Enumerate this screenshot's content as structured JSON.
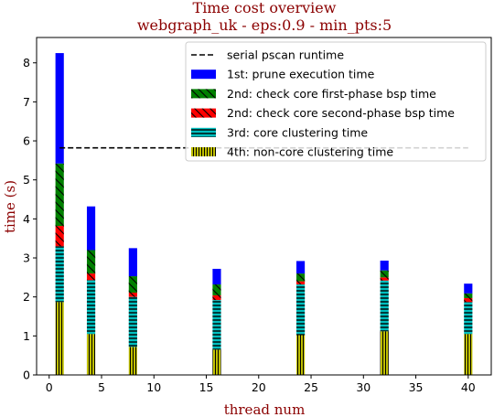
{
  "chart_data": {
    "type": "bar",
    "stacked": true,
    "title": "Time cost overview",
    "subtitle": "webgraph_uk - eps:0.9 - min_pts:5",
    "xlabel": "thread num",
    "ylabel": "time (s)",
    "xlim": [
      -1.2,
      42.2
    ],
    "ylim": [
      0,
      8.65
    ],
    "xticks": [
      0,
      5,
      10,
      15,
      20,
      25,
      30,
      35,
      40
    ],
    "yticks": [
      0,
      1,
      2,
      3,
      4,
      5,
      6,
      7,
      8
    ],
    "bar_width": 0.8,
    "x": [
      1,
      4,
      8,
      16,
      24,
      32,
      40
    ],
    "reference_line": {
      "name": "serial pscan runtime",
      "y": 5.82,
      "x_range": [
        1,
        40
      ],
      "color": "#000000"
    },
    "series": [
      {
        "name": "4th: non-core clustering time",
        "color": "#bfbf00",
        "hatch": "vertical",
        "values": [
          1.87,
          1.05,
          0.72,
          0.65,
          1.02,
          1.12,
          1.05
        ]
      },
      {
        "name": "3rd: core clustering time",
        "color": "#00bfbf",
        "hatch": "horizontal",
        "values": [
          1.43,
          1.38,
          1.28,
          1.27,
          1.3,
          1.3,
          0.82
        ]
      },
      {
        "name": "2nd: check core second-phase bsp time",
        "color": "#ff0000",
        "hatch": "diagonal",
        "values": [
          0.52,
          0.17,
          0.11,
          0.12,
          0.08,
          0.08,
          0.1
        ]
      },
      {
        "name": "2nd: check core first-phase bsp time",
        "color": "#008000",
        "hatch": "diagonal",
        "values": [
          1.6,
          0.6,
          0.42,
          0.28,
          0.2,
          0.18,
          0.12
        ]
      },
      {
        "name": "1st: prune execution time",
        "color": "#0000ff",
        "hatch": "none",
        "values": [
          2.83,
          1.12,
          0.72,
          0.4,
          0.32,
          0.25,
          0.25
        ]
      }
    ],
    "legend": {
      "position": "top-right",
      "order": [
        "serial pscan runtime",
        "1st: prune execution time",
        "2nd: check core first-phase bsp time",
        "2nd: check core second-phase bsp time",
        "3rd: core clustering time",
        "4th: non-core clustering time"
      ]
    }
  }
}
